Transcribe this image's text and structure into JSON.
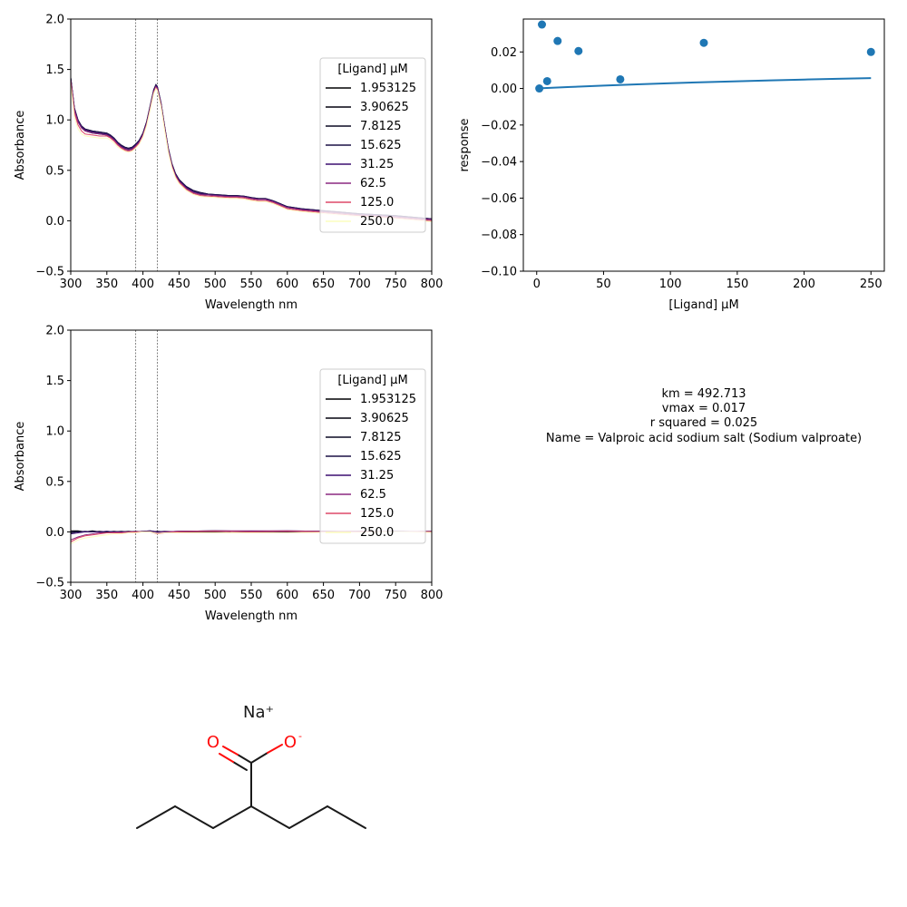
{
  "chart_data": [
    {
      "id": "spectra_raw",
      "type": "line",
      "xlabel": "Wavelength nm",
      "ylabel": "Absorbance",
      "xlim": [
        300,
        800
      ],
      "ylim": [
        -0.5,
        2.0
      ],
      "xticks": [
        "300",
        "350",
        "400",
        "450",
        "500",
        "550",
        "600",
        "650",
        "700",
        "750",
        "800"
      ],
      "yticks": [
        "−0.5",
        "0.0",
        "0.5",
        "1.0",
        "1.5",
        "2.0"
      ],
      "vlines": [
        390,
        420
      ],
      "legend": {
        "title": "[Ligand] µM",
        "placement": "upper-right",
        "entries": [
          "1.953125",
          "3.90625",
          "7.8125",
          "15.625",
          "31.25",
          "62.5",
          "125.0",
          "250.0"
        ]
      },
      "series_colors": [
        "#000004",
        "#04020f",
        "#0b0a24",
        "#1c1046",
        "#3b0f70",
        "#8c2981",
        "#de4968",
        "#fcfdbf"
      ],
      "x": [
        300,
        305,
        310,
        315,
        320,
        330,
        340,
        350,
        355,
        360,
        365,
        370,
        375,
        380,
        385,
        390,
        395,
        400,
        405,
        410,
        415,
        418,
        420,
        425,
        430,
        435,
        440,
        445,
        450,
        460,
        470,
        480,
        490,
        500,
        510,
        520,
        530,
        540,
        550,
        560,
        570,
        580,
        590,
        600,
        620,
        650,
        700,
        750,
        800
      ],
      "series": [
        {
          "values": [
            1.4,
            1.1,
            0.98,
            0.92,
            0.89,
            0.87,
            0.86,
            0.85,
            0.83,
            0.8,
            0.76,
            0.73,
            0.71,
            0.7,
            0.71,
            0.74,
            0.78,
            0.85,
            0.96,
            1.12,
            1.28,
            1.33,
            1.31,
            1.15,
            0.92,
            0.7,
            0.55,
            0.45,
            0.39,
            0.32,
            0.28,
            0.26,
            0.255,
            0.25,
            0.245,
            0.24,
            0.24,
            0.235,
            0.22,
            0.21,
            0.21,
            0.19,
            0.16,
            0.13,
            0.11,
            0.09,
            0.06,
            0.04,
            0.01
          ]
        },
        {
          "values": [
            1.41,
            1.11,
            0.99,
            0.93,
            0.9,
            0.88,
            0.87,
            0.86,
            0.84,
            0.81,
            0.77,
            0.74,
            0.72,
            0.71,
            0.72,
            0.75,
            0.79,
            0.86,
            0.97,
            1.13,
            1.29,
            1.34,
            1.32,
            1.16,
            0.93,
            0.71,
            0.56,
            0.46,
            0.4,
            0.33,
            0.29,
            0.27,
            0.26,
            0.255,
            0.25,
            0.245,
            0.245,
            0.24,
            0.225,
            0.215,
            0.215,
            0.195,
            0.165,
            0.135,
            0.115,
            0.095,
            0.065,
            0.045,
            0.015
          ]
        },
        {
          "values": [
            1.42,
            1.12,
            1.0,
            0.94,
            0.91,
            0.89,
            0.88,
            0.87,
            0.85,
            0.82,
            0.78,
            0.75,
            0.73,
            0.72,
            0.73,
            0.76,
            0.8,
            0.87,
            0.98,
            1.14,
            1.3,
            1.35,
            1.33,
            1.17,
            0.94,
            0.72,
            0.57,
            0.47,
            0.41,
            0.34,
            0.3,
            0.28,
            0.265,
            0.26,
            0.255,
            0.25,
            0.25,
            0.245,
            0.23,
            0.22,
            0.22,
            0.2,
            0.17,
            0.14,
            0.12,
            0.1,
            0.07,
            0.05,
            0.02
          ]
        },
        {
          "values": [
            1.42,
            1.12,
            1.0,
            0.94,
            0.91,
            0.89,
            0.88,
            0.87,
            0.85,
            0.82,
            0.78,
            0.75,
            0.73,
            0.72,
            0.73,
            0.76,
            0.8,
            0.87,
            0.98,
            1.14,
            1.3,
            1.35,
            1.33,
            1.17,
            0.94,
            0.72,
            0.57,
            0.47,
            0.41,
            0.34,
            0.3,
            0.28,
            0.265,
            0.26,
            0.255,
            0.25,
            0.25,
            0.245,
            0.23,
            0.22,
            0.22,
            0.2,
            0.17,
            0.14,
            0.12,
            0.1,
            0.07,
            0.05,
            0.02
          ]
        },
        {
          "values": [
            1.41,
            1.11,
            0.99,
            0.93,
            0.9,
            0.88,
            0.87,
            0.86,
            0.84,
            0.81,
            0.77,
            0.74,
            0.72,
            0.71,
            0.72,
            0.75,
            0.79,
            0.86,
            0.97,
            1.13,
            1.29,
            1.34,
            1.32,
            1.16,
            0.93,
            0.71,
            0.56,
            0.46,
            0.4,
            0.33,
            0.29,
            0.27,
            0.26,
            0.255,
            0.25,
            0.245,
            0.245,
            0.24,
            0.225,
            0.215,
            0.215,
            0.195,
            0.165,
            0.135,
            0.115,
            0.095,
            0.065,
            0.045,
            0.015
          ]
        },
        {
          "values": [
            1.4,
            1.1,
            0.98,
            0.92,
            0.89,
            0.87,
            0.86,
            0.85,
            0.83,
            0.8,
            0.76,
            0.73,
            0.71,
            0.7,
            0.71,
            0.74,
            0.78,
            0.85,
            0.96,
            1.12,
            1.28,
            1.33,
            1.31,
            1.15,
            0.92,
            0.7,
            0.55,
            0.45,
            0.39,
            0.32,
            0.28,
            0.26,
            0.255,
            0.25,
            0.245,
            0.24,
            0.24,
            0.235,
            0.22,
            0.21,
            0.21,
            0.19,
            0.16,
            0.13,
            0.11,
            0.09,
            0.06,
            0.04,
            0.01
          ]
        },
        {
          "values": [
            1.38,
            1.07,
            0.95,
            0.89,
            0.86,
            0.85,
            0.84,
            0.84,
            0.82,
            0.79,
            0.75,
            0.72,
            0.7,
            0.69,
            0.7,
            0.73,
            0.77,
            0.84,
            0.95,
            1.11,
            1.27,
            1.32,
            1.3,
            1.14,
            0.91,
            0.69,
            0.54,
            0.44,
            0.38,
            0.31,
            0.27,
            0.25,
            0.245,
            0.24,
            0.235,
            0.23,
            0.23,
            0.225,
            0.21,
            0.2,
            0.2,
            0.18,
            0.15,
            0.12,
            0.1,
            0.08,
            0.05,
            0.03,
            0.0
          ]
        },
        {
          "values": [
            1.35,
            1.03,
            0.91,
            0.86,
            0.84,
            0.83,
            0.82,
            0.82,
            0.8,
            0.77,
            0.73,
            0.71,
            0.69,
            0.68,
            0.69,
            0.72,
            0.76,
            0.83,
            0.94,
            1.1,
            1.26,
            1.31,
            1.29,
            1.13,
            0.9,
            0.68,
            0.53,
            0.43,
            0.37,
            0.3,
            0.26,
            0.24,
            0.235,
            0.23,
            0.225,
            0.22,
            0.22,
            0.215,
            0.2,
            0.19,
            0.19,
            0.17,
            0.14,
            0.11,
            0.09,
            0.07,
            0.04,
            0.02,
            -0.01
          ]
        }
      ]
    },
    {
      "id": "response_fit",
      "type": "scatter",
      "xlabel": "[Ligand] µM",
      "ylabel": "response",
      "xlim": [
        -10,
        260
      ],
      "ylim": [
        -0.1,
        0.038
      ],
      "xticks": [
        "0",
        "50",
        "100",
        "150",
        "200",
        "250"
      ],
      "ytick_values": [
        -0.1,
        -0.08,
        -0.06,
        -0.04,
        -0.02,
        0.0,
        0.02
      ],
      "yticks": [
        "−0.10",
        "−0.08",
        "−0.06",
        "−0.04",
        "−0.02",
        "0.00",
        "0.02"
      ],
      "point_color": "#1f77b4",
      "points": {
        "x": [
          1.953125,
          3.90625,
          7.8125,
          15.625,
          31.25,
          62.5,
          125.0,
          250.0
        ],
        "y": [
          0.0,
          0.035,
          0.004,
          0.026,
          0.0205,
          0.005,
          0.025,
          0.02
        ]
      },
      "fit": {
        "x": [
          1.953125,
          25,
          50,
          75,
          100,
          125,
          150,
          175,
          200,
          225,
          250
        ],
        "y": [
          6.6e-05,
          0.00082,
          0.00157,
          0.00225,
          0.00286,
          0.00343,
          0.00394,
          0.00442,
          0.00487,
          0.00529,
          0.00568
        ]
      }
    },
    {
      "id": "spectra_diff",
      "type": "line",
      "xlabel": "Wavelength nm",
      "ylabel": "Absorbance",
      "xlim": [
        300,
        800
      ],
      "ylim": [
        -0.5,
        2.0
      ],
      "xticks": [
        "300",
        "350",
        "400",
        "450",
        "500",
        "550",
        "600",
        "650",
        "700",
        "750",
        "800"
      ],
      "yticks": [
        "−0.5",
        "0.0",
        "0.5",
        "1.0",
        "1.5",
        "2.0"
      ],
      "vlines": [
        390,
        420
      ],
      "legend": {
        "title": "[Ligand] µM",
        "placement": "upper-right",
        "entries": [
          "1.953125",
          "3.90625",
          "7.8125",
          "15.625",
          "31.25",
          "62.5",
          "125.0",
          "250.0"
        ]
      },
      "series_colors": [
        "#000004",
        "#04020f",
        "#0b0a24",
        "#1c1046",
        "#3b0f70",
        "#8c2981",
        "#de4968",
        "#fcfdbf"
      ],
      "x": [
        300,
        310,
        320,
        330,
        340,
        350,
        360,
        370,
        380,
        390,
        400,
        410,
        420,
        430,
        450,
        500,
        550,
        600,
        650,
        700,
        750,
        800
      ],
      "series": [
        {
          "values": [
            0.01,
            0.01,
            0.0,
            0.01,
            0.0,
            0.0,
            0.005,
            0.0,
            0.0,
            0.0,
            0.0,
            0.005,
            0.0,
            0.0,
            0.0,
            0.005,
            0.0,
            0.005,
            0.0,
            0.0,
            0.005,
            0.0
          ]
        },
        {
          "values": [
            0.0,
            0.005,
            0.0,
            0.0,
            0.005,
            0.0,
            0.0,
            0.0,
            0.005,
            0.0,
            0.0,
            0.0,
            0.005,
            0.0,
            0.0,
            0.0,
            0.005,
            0.0,
            0.005,
            0.0,
            0.0,
            0.005
          ]
        },
        {
          "values": [
            -0.01,
            0.0,
            0.0,
            0.005,
            0.0,
            0.0,
            0.0,
            0.005,
            0.0,
            0.0,
            0.005,
            0.01,
            0.0,
            0.0,
            0.005,
            0.01,
            0.005,
            0.005,
            0.0,
            0.005,
            0.0,
            0.0
          ]
        },
        {
          "values": [
            0.0,
            0.0,
            0.005,
            0.0,
            0.0,
            0.005,
            0.0,
            0.0,
            0.0,
            0.005,
            0.0,
            0.0,
            0.0,
            0.005,
            0.0,
            0.005,
            0.0,
            0.0,
            0.005,
            0.0,
            0.0,
            0.0
          ]
        },
        {
          "values": [
            -0.02,
            -0.01,
            0.0,
            0.0,
            0.0,
            0.005,
            0.0,
            0.0,
            0.0,
            0.0,
            0.005,
            0.01,
            0.0,
            0.0,
            0.005,
            0.01,
            0.005,
            0.01,
            0.005,
            0.0,
            0.005,
            0.0
          ]
        },
        {
          "values": [
            -0.08,
            -0.05,
            -0.03,
            -0.02,
            -0.01,
            -0.01,
            -0.005,
            -0.005,
            0.0,
            0.0,
            0.0,
            0.0,
            -0.01,
            0.0,
            0.005,
            0.01,
            0.01,
            0.01,
            0.005,
            0.005,
            0.0,
            0.005
          ]
        },
        {
          "values": [
            -0.1,
            -0.06,
            -0.04,
            -0.03,
            -0.02,
            -0.01,
            -0.01,
            -0.01,
            -0.005,
            0.0,
            0.0,
            0.0,
            -0.02,
            -0.01,
            0.0,
            0.005,
            0.0,
            0.005,
            0.0,
            0.0,
            0.0,
            0.0
          ]
        },
        {
          "values": [
            -0.12,
            -0.08,
            -0.06,
            -0.05,
            -0.04,
            -0.03,
            -0.02,
            -0.02,
            -0.01,
            -0.01,
            0.0,
            0.0,
            -0.015,
            -0.01,
            -0.01,
            -0.01,
            -0.01,
            -0.01,
            -0.005,
            -0.005,
            0.0,
            -0.005
          ]
        }
      ]
    }
  ],
  "stats": {
    "lines": [
      "km = 492.713",
      "vmax = 0.017",
      "r squared = 0.025",
      "Name = Valproic acid sodium salt (Sodium valproate)"
    ]
  },
  "molecule": {
    "counterion": "Na⁺",
    "carbonyl_oxygen": "O",
    "anion_oxygen": "O",
    "anion_charge": "-",
    "bond_color": "#1a1a1a",
    "hetero_color": "#ff0d0d"
  }
}
